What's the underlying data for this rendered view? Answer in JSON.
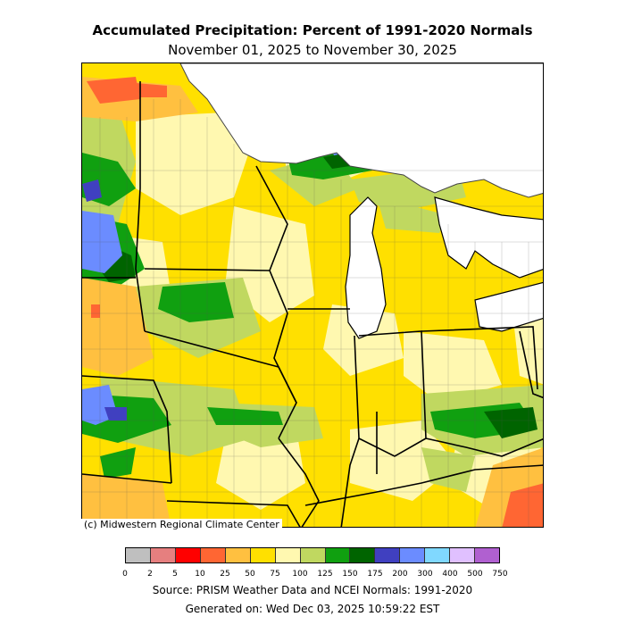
{
  "header": {
    "title": "Accumulated Precipitation: Percent of 1991-2020 Normals",
    "subtitle": "November 01, 2025 to November 30, 2025"
  },
  "map": {
    "credit": "(c) Midwestern Regional Climate Center",
    "water_color": "#ffffff",
    "border_color": "#000000"
  },
  "legend": {
    "ticks": [
      "0",
      "2",
      "5",
      "10",
      "25",
      "50",
      "75",
      "100",
      "125",
      "150",
      "175",
      "200",
      "300",
      "400",
      "500",
      "750"
    ],
    "colors": [
      "#bfbfbf",
      "#e67f7f",
      "#ff0000",
      "#ff6633",
      "#ffc040",
      "#ffe000",
      "#fff8b0",
      "#c0d860",
      "#10a010",
      "#006400",
      "#4040c0",
      "#6b8cff",
      "#80d8ff",
      "#e0c0ff",
      "#b060d0"
    ]
  },
  "footer": {
    "source": "Source: PRISM Weather Data and NCEI Normals: 1991-2020",
    "generated": "Generated on: Wed Dec 03, 2025 10:59:22 EST"
  }
}
